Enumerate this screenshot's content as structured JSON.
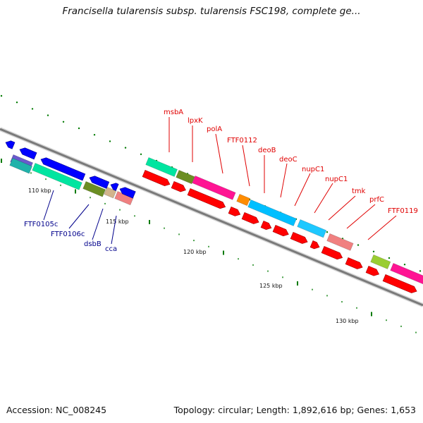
{
  "title": "Francisella tularensis subsp. tularensis FSC198, complete ge...",
  "footer": {
    "accession": "Accession: NC_008245",
    "summary": "Topology: circular; Length: 1,892,616 bp; Genes: 1,653"
  },
  "colors": {
    "backbone": "#7a7a7a",
    "tick": "#007a00",
    "top_labels": "#e00000",
    "bottom_labels": "#00008b"
  },
  "scale_labels": [
    "110 kbp",
    "115 kbp",
    "120 kbp",
    "125 kbp",
    "130 kbp"
  ],
  "gene_labels_top": [
    "msbA",
    "lpxK",
    "polA",
    "FTF0112",
    "deoB",
    "deoC",
    "nupC1",
    "nupC1",
    "tmk",
    "prfC",
    "FTF0119"
  ],
  "gene_labels_bottom": [
    "FTF0105c",
    "FTF0106c",
    "dsbB",
    "cca"
  ]
}
